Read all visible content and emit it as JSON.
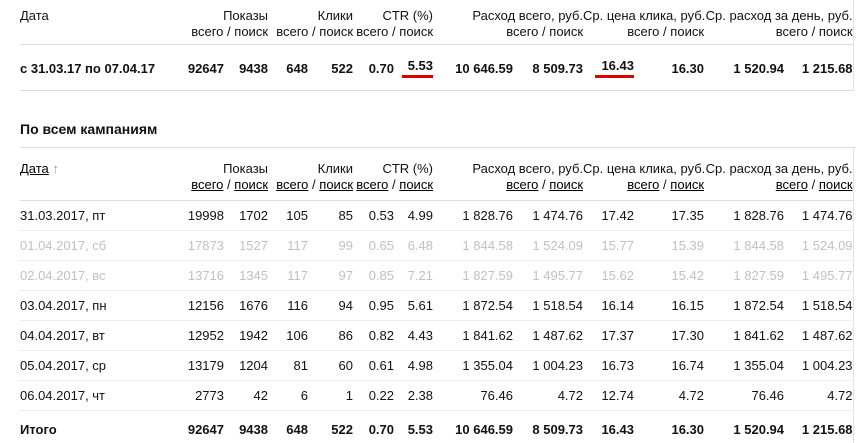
{
  "colors": {
    "accent_red": "#dd0000",
    "muted_text": "#c1c1c1"
  },
  "columns": {
    "date_label": "Дата",
    "sub_sep": "/",
    "groups": [
      {
        "label": "Показы",
        "total": "всего",
        "search": "поиск"
      },
      {
        "label": "Клики",
        "total": "всего",
        "search": "поиск"
      },
      {
        "label": "CTR (%)",
        "total": "всего",
        "search": "поиск"
      },
      {
        "label": "Расход всего, руб.",
        "total": "всего",
        "search": "поиск"
      },
      {
        "label": "Ср. цена клика, руб.",
        "total": "всего",
        "search": "поиск"
      },
      {
        "label": "Ср. расход за день, руб.",
        "total": "всего",
        "search": "поиск"
      }
    ]
  },
  "summary_table": {
    "row": {
      "date": "с 31.03.17 по 07.04.17",
      "values": [
        "92647",
        "9438",
        "648",
        "522",
        "0.70",
        "5.53",
        "10 646.59",
        "8 509.73",
        "16.43",
        "16.30",
        "1 520.94",
        "1 215.68"
      ]
    }
  },
  "section": {
    "title": "По всем кампаниям"
  },
  "campaigns_table": {
    "sort_arrow": "↑",
    "rows": [
      {
        "date": "31.03.2017, пт",
        "muted": false,
        "values": [
          "19998",
          "1702",
          "105",
          "85",
          "0.53",
          "4.99",
          "1 828.76",
          "1 474.76",
          "17.42",
          "17.35",
          "1 828.76",
          "1 474.76"
        ]
      },
      {
        "date": "01.04.2017, сб",
        "muted": true,
        "values": [
          "17873",
          "1527",
          "117",
          "99",
          "0.65",
          "6.48",
          "1 844.58",
          "1 524.09",
          "15.77",
          "15.39",
          "1 844.58",
          "1 524.09"
        ]
      },
      {
        "date": "02.04.2017, вс",
        "muted": true,
        "values": [
          "13716",
          "1345",
          "117",
          "97",
          "0.85",
          "7.21",
          "1 827.59",
          "1 495.77",
          "15.62",
          "15.42",
          "1 827.59",
          "1 495.77"
        ]
      },
      {
        "date": "03.04.2017, пн",
        "muted": false,
        "values": [
          "12156",
          "1676",
          "116",
          "94",
          "0.95",
          "5.61",
          "1 872.54",
          "1 518.54",
          "16.14",
          "16.15",
          "1 872.54",
          "1 518.54"
        ]
      },
      {
        "date": "04.04.2017, вт",
        "muted": false,
        "values": [
          "12952",
          "1942",
          "106",
          "86",
          "0.82",
          "4.43",
          "1 841.62",
          "1 487.62",
          "17.37",
          "17.30",
          "1 841.62",
          "1 487.62"
        ]
      },
      {
        "date": "05.04.2017, ср",
        "muted": false,
        "values": [
          "13179",
          "1204",
          "81",
          "60",
          "0.61",
          "4.98",
          "1 355.04",
          "1 004.23",
          "16.73",
          "16.74",
          "1 355.04",
          "1 004.23"
        ]
      },
      {
        "date": "06.04.2017, чт",
        "muted": false,
        "values": [
          "2773",
          "42",
          "6",
          "1",
          "0.22",
          "2.38",
          "76.46",
          "4.72",
          "12.74",
          "4.72",
          "76.46",
          "4.72"
        ]
      }
    ],
    "total": {
      "label": "Итого",
      "values": [
        "92647",
        "9438",
        "648",
        "522",
        "0.70",
        "5.53",
        "10 646.59",
        "8 509.73",
        "16.43",
        "16.30",
        "1 520.94",
        "1 215.68"
      ]
    }
  }
}
